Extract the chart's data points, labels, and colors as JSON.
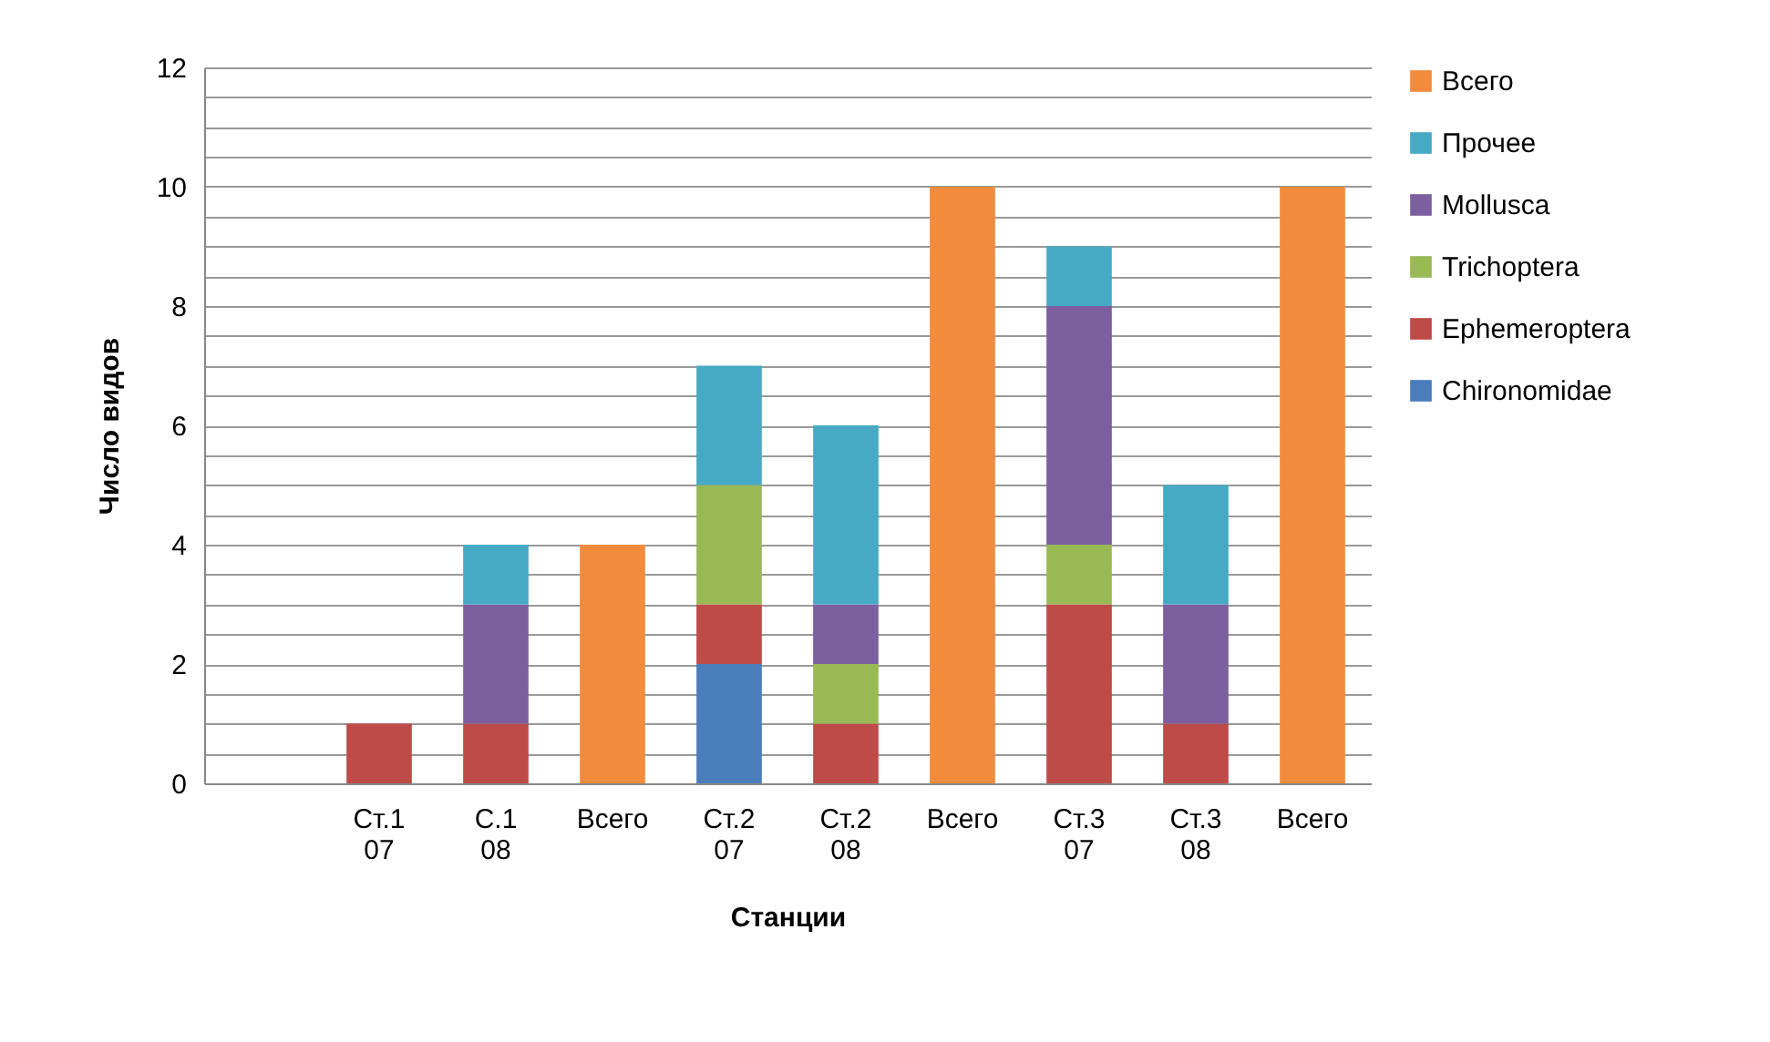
{
  "chart_data": {
    "type": "bar",
    "stacked": true,
    "xlabel": "Станции",
    "ylabel": "Число видов",
    "categories": [
      null,
      "Ст.1 07",
      "С.1 08",
      "Всего",
      "Ст.2 07",
      "Ст.2 08",
      "Всего",
      "Ст.3 07",
      "Ст.3 08",
      "Всего"
    ],
    "series": [
      {
        "name": "Chironomidae",
        "color": "#4a7ebb",
        "values": [
          null,
          null,
          null,
          null,
          2,
          null,
          null,
          null,
          null,
          null
        ]
      },
      {
        "name": "Ephemeroptera",
        "color": "#be4b48",
        "values": [
          null,
          1,
          1,
          null,
          1,
          1,
          null,
          3,
          1,
          null
        ]
      },
      {
        "name": "Trichoptera",
        "color": "#98b954",
        "values": [
          null,
          null,
          null,
          null,
          2,
          1,
          null,
          1,
          null,
          null
        ]
      },
      {
        "name": "Mollusca",
        "color": "#7d5fa0",
        "values": [
          null,
          null,
          2,
          null,
          null,
          1,
          null,
          4,
          2,
          null
        ]
      },
      {
        "name": "Прочее",
        "color": "#46aac5",
        "values": [
          null,
          null,
          1,
          null,
          2,
          3,
          null,
          1,
          2,
          null
        ]
      },
      {
        "name": "Всего",
        "color": "#f38b3c",
        "values": [
          null,
          null,
          null,
          4,
          null,
          null,
          10,
          null,
          null,
          10
        ]
      }
    ],
    "ylim": [
      0,
      12
    ],
    "yticks": [
      0,
      {
        "value": 0.5,
        "label": null
      },
      {
        "value": 1,
        "label": null
      },
      {
        "value": 1.5,
        "label": null
      },
      2,
      {
        "value": 2.5,
        "label": null
      },
      {
        "value": 3,
        "label": null
      },
      {
        "value": 3.5,
        "label": null
      },
      4,
      {
        "value": 4.5,
        "label": null
      },
      {
        "value": 5,
        "label": null
      },
      {
        "value": 5.5,
        "label": null
      },
      6,
      {
        "value": 6.5,
        "label": null
      },
      {
        "value": 7,
        "label": null
      },
      {
        "value": 7.5,
        "label": null
      },
      8,
      {
        "value": 8.5,
        "label": null
      },
      {
        "value": 9,
        "label": null
      },
      {
        "value": 9.5,
        "label": null
      },
      10,
      {
        "value": 10.5,
        "label": null
      },
      {
        "value": 11,
        "label": null
      },
      {
        "value": 11.5,
        "label": null
      },
      12
    ],
    "grid": "y",
    "legend": "right"
  }
}
